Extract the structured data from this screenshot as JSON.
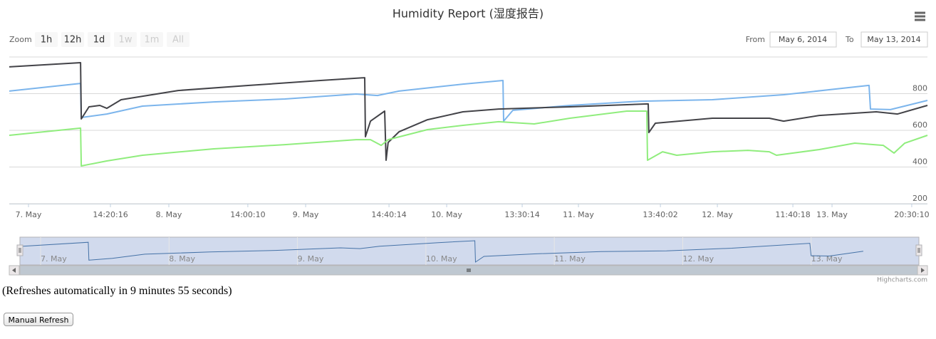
{
  "chart_data": {
    "type": "line",
    "title": "Humidity Report (湿度报告)",
    "range_selector": {
      "label": "Zoom",
      "buttons": [
        {
          "text": "1h",
          "enabled": true
        },
        {
          "text": "12h",
          "enabled": true
        },
        {
          "text": "1d",
          "enabled": true
        },
        {
          "text": "1w",
          "enabled": false
        },
        {
          "text": "1m",
          "enabled": false
        },
        {
          "text": "All",
          "enabled": false
        }
      ],
      "from_label": "From",
      "from": "May 6, 2014",
      "to_label": "To",
      "to": "May 13, 2014"
    },
    "xlim": [
      6.863,
      13.406
    ],
    "xticks": [
      {
        "value": 7,
        "label": "7. May"
      },
      {
        "value": 7.584,
        "label": "14:20:16"
      },
      {
        "value": 8,
        "label": "8. May"
      },
      {
        "value": 8.563,
        "label": "14:00:10"
      },
      {
        "value": 8.975,
        "label": "9. May"
      },
      {
        "value": 9.569,
        "label": "14:40:14"
      },
      {
        "value": 9.98,
        "label": "10. May"
      },
      {
        "value": 10.518,
        "label": "13:30:14"
      },
      {
        "value": 10.919,
        "label": "11. May"
      },
      {
        "value": 11.503,
        "label": "13:40:02"
      },
      {
        "value": 11.909,
        "label": "12. May"
      },
      {
        "value": 12.447,
        "label": "11:40:18"
      },
      {
        "value": 12.726,
        "label": "13. May"
      },
      {
        "value": 13.294,
        "label": "20:30:10"
      }
    ],
    "ylim": [
      200,
      1000
    ],
    "yticks": [
      200,
      400,
      600,
      800
    ],
    "grid": true,
    "series": [
      {
        "color": "#7cb5ec",
        "x": [
          6.863,
          7.371,
          7.376,
          7.558,
          7.812,
          8.32,
          8.827,
          9.335,
          9.487,
          9.538,
          9.64,
          10.096,
          10.381,
          10.386,
          10.452,
          10.858,
          11.365,
          11.873,
          12.381,
          12.99,
          13.0,
          13.142,
          13.406
        ],
        "values": [
          814,
          856,
          670,
          689,
          732,
          755,
          771,
          798,
          790,
          798,
          814,
          852,
          872,
          650,
          709,
          736,
          759,
          767,
          794,
          845,
          716,
          713,
          763
        ]
      },
      {
        "color": "#434348",
        "x": [
          6.863,
          7.371,
          7.376,
          7.431,
          7.508,
          7.558,
          7.66,
          8.066,
          8.574,
          9.081,
          9.396,
          9.401,
          9.437,
          9.538,
          9.548,
          9.563,
          9.64,
          9.843,
          10.096,
          10.35,
          10.858,
          11.416,
          11.421,
          11.467,
          11.873,
          12.279,
          12.381,
          12.635,
          13.041,
          13.193,
          13.406
        ],
        "values": [
          946,
          969,
          662,
          728,
          736,
          720,
          767,
          817,
          845,
          872,
          887,
          565,
          650,
          705,
          437,
          534,
          592,
          658,
          701,
          716,
          728,
          744,
          588,
          639,
          666,
          666,
          650,
          681,
          701,
          689,
          736
        ]
      },
      {
        "color": "#90ed7d",
        "x": [
          6.863,
          7.371,
          7.376,
          7.558,
          7.812,
          8.32,
          8.827,
          9.335,
          9.437,
          9.513,
          9.563,
          9.843,
          10.096,
          10.35,
          10.604,
          10.858,
          11.264,
          11.406,
          11.411,
          11.518,
          11.619,
          11.873,
          12.127,
          12.279,
          12.33,
          12.635,
          12.888,
          13.091,
          13.168,
          13.244,
          13.406
        ],
        "values": [
          573,
          612,
          406,
          433,
          464,
          499,
          522,
          549,
          549,
          518,
          549,
          604,
          627,
          647,
          635,
          666,
          705,
          705,
          437,
          483,
          464,
          483,
          491,
          483,
          464,
          495,
          530,
          518,
          476,
          530,
          573
        ]
      }
    ],
    "navigator": {
      "xlim": [
        6.839,
        13.839
      ],
      "xticks": [
        {
          "value": 7,
          "label": "7. May"
        },
        {
          "value": 8,
          "label": "8. May"
        },
        {
          "value": 9,
          "label": "9. May"
        },
        {
          "value": 10,
          "label": "10. May"
        },
        {
          "value": 11,
          "label": "11. May"
        },
        {
          "value": 12,
          "label": "12. May"
        },
        {
          "value": 13,
          "label": "13. May"
        }
      ]
    },
    "credits": "Highcharts.com"
  },
  "page": {
    "status": "(Refreshes automatically in 9 minutes 55 seconds)",
    "button": "Manual Refresh"
  }
}
